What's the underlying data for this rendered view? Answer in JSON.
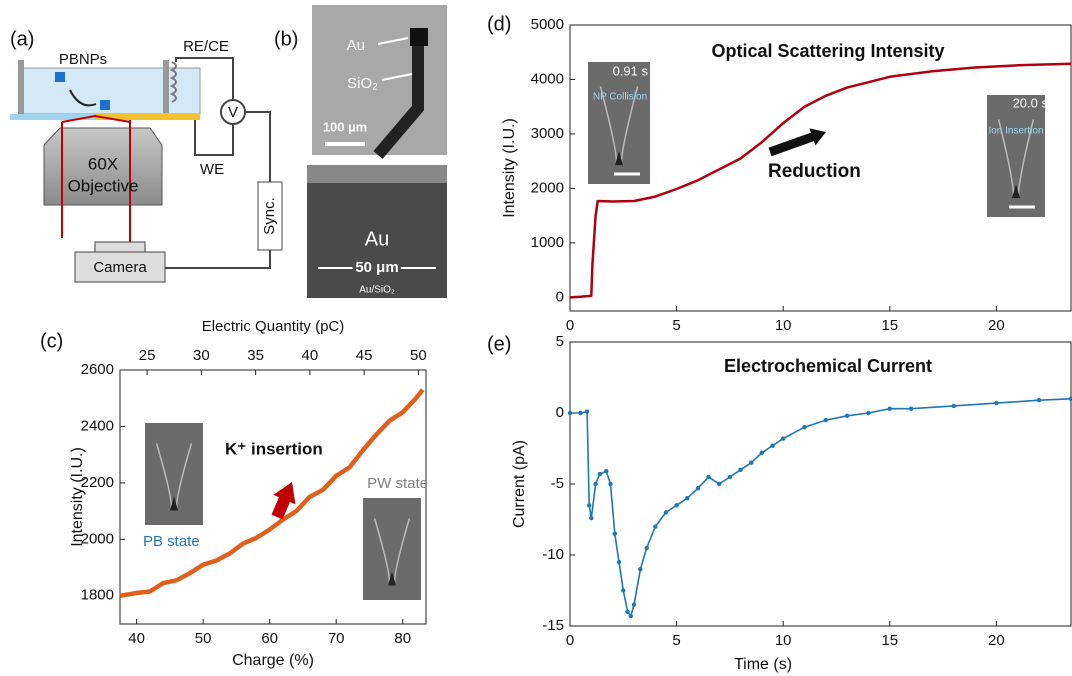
{
  "diagram_a": {
    "panel_label": "(a)",
    "labels": [
      "PBNPs",
      "RE/CE",
      "V",
      "60X",
      "Objective",
      "WE",
      "Sync.",
      "Camera"
    ]
  },
  "diagram_b": {
    "panel_label": "(b)",
    "labels": [
      "Au",
      "SiO₂",
      "100 µm",
      "Au",
      "50 μm",
      "Au/SiO₂"
    ]
  },
  "chart_data": [
    {
      "type": "line",
      "panel_label": "(c)",
      "xlabel": "Charge (%)",
      "ylabel": "Intensity (I.U.)",
      "x2label": "Electric Quantity (pC)",
      "xlim": [
        37.5,
        83.5
      ],
      "xticks": [
        40,
        50,
        60,
        70,
        80
      ],
      "x2lim": [
        22.5,
        50.7
      ],
      "x2ticks": [
        25,
        30,
        35,
        40,
        45,
        50
      ],
      "ylim": [
        1700,
        2600
      ],
      "yticks": [
        1800,
        2000,
        2200,
        2400,
        2600
      ],
      "color": "#e0601b",
      "markers": false,
      "x": [
        37.5,
        40,
        42,
        44,
        46,
        48,
        50,
        52,
        54,
        56,
        58,
        60,
        62,
        64,
        66,
        68,
        70,
        72,
        74,
        76,
        78,
        80,
        82,
        83
      ],
      "values": [
        1800,
        1810,
        1815,
        1845,
        1855,
        1880,
        1910,
        1925,
        1950,
        1985,
        2005,
        2035,
        2070,
        2100,
        2150,
        2175,
        2225,
        2255,
        2315,
        2370,
        2420,
        2450,
        2500,
        2530
      ],
      "annotations": [
        {
          "text": "K⁺ insertion",
          "color": "#111111"
        },
        {
          "text": "PB state",
          "color": "#1f77b4"
        },
        {
          "text": "PW state",
          "color": "#808080"
        }
      ]
    },
    {
      "type": "line",
      "panel_label": "(d)",
      "title": "Optical Scattering Intensity",
      "ylabel": "Intensity (I.U.)",
      "xlim": [
        0,
        23.5
      ],
      "xticks": [
        0,
        5,
        10,
        15,
        20
      ],
      "ylim": [
        -250,
        5000
      ],
      "yticks": [
        0,
        1000,
        2000,
        3000,
        4000,
        5000
      ],
      "color": "#b00010",
      "markers": false,
      "x": [
        0,
        0.5,
        1.0,
        1.05,
        1.2,
        1.3,
        2,
        3,
        4,
        5,
        6,
        7,
        8,
        9,
        10,
        11,
        12,
        13,
        14,
        15,
        17,
        19,
        21,
        23.5
      ],
      "values": [
        0,
        10,
        30,
        600,
        1500,
        1770,
        1760,
        1770,
        1850,
        1990,
        2150,
        2350,
        2550,
        2850,
        3200,
        3500,
        3700,
        3850,
        3950,
        4050,
        4150,
        4220,
        4260,
        4290
      ],
      "annotations": [
        {
          "text": "Reduction",
          "color": "#111111"
        },
        {
          "text": "0.91 s",
          "color": "#ffffff"
        },
        {
          "text": "NP Collision",
          "color": "#9fd3f0"
        },
        {
          "text": "20.0 s",
          "color": "#ffffff"
        },
        {
          "text": "Ion Insertion",
          "color": "#9fd3f0"
        }
      ]
    },
    {
      "type": "line",
      "panel_label": "(e)",
      "title": "Electrochemical Current",
      "xlabel": "Time (s)",
      "ylabel": "Current (pA)",
      "xlim": [
        0,
        23.5
      ],
      "xticks": [
        0,
        5,
        10,
        15,
        20
      ],
      "ylim": [
        -15,
        5
      ],
      "yticks": [
        5,
        0,
        -5,
        -10,
        -15
      ],
      "color": "#1f77b4",
      "markers": true,
      "x": [
        0,
        0.5,
        0.8,
        0.9,
        1.0,
        1.2,
        1.4,
        1.7,
        1.9,
        2.1,
        2.3,
        2.5,
        2.7,
        2.85,
        3.0,
        3.3,
        3.6,
        4,
        4.5,
        5,
        5.5,
        6,
        6.5,
        7,
        7.5,
        8,
        8.5,
        9,
        9.5,
        10,
        11,
        12,
        13,
        14,
        15,
        16,
        18,
        20,
        22,
        23.5
      ],
      "values": [
        0,
        0,
        0.1,
        -6.5,
        -7.4,
        -5,
        -4.3,
        -4.1,
        -5,
        -8.5,
        -10.5,
        -12.5,
        -14,
        -14.3,
        -13.5,
        -11,
        -9.5,
        -8,
        -7,
        -6.5,
        -6,
        -5.3,
        -4.5,
        -5,
        -4.5,
        -4,
        -3.5,
        -2.8,
        -2.3,
        -1.8,
        -1,
        -0.5,
        -0.2,
        0,
        0.3,
        0.3,
        0.5,
        0.7,
        0.9,
        1
      ],
      "annotations": []
    }
  ]
}
